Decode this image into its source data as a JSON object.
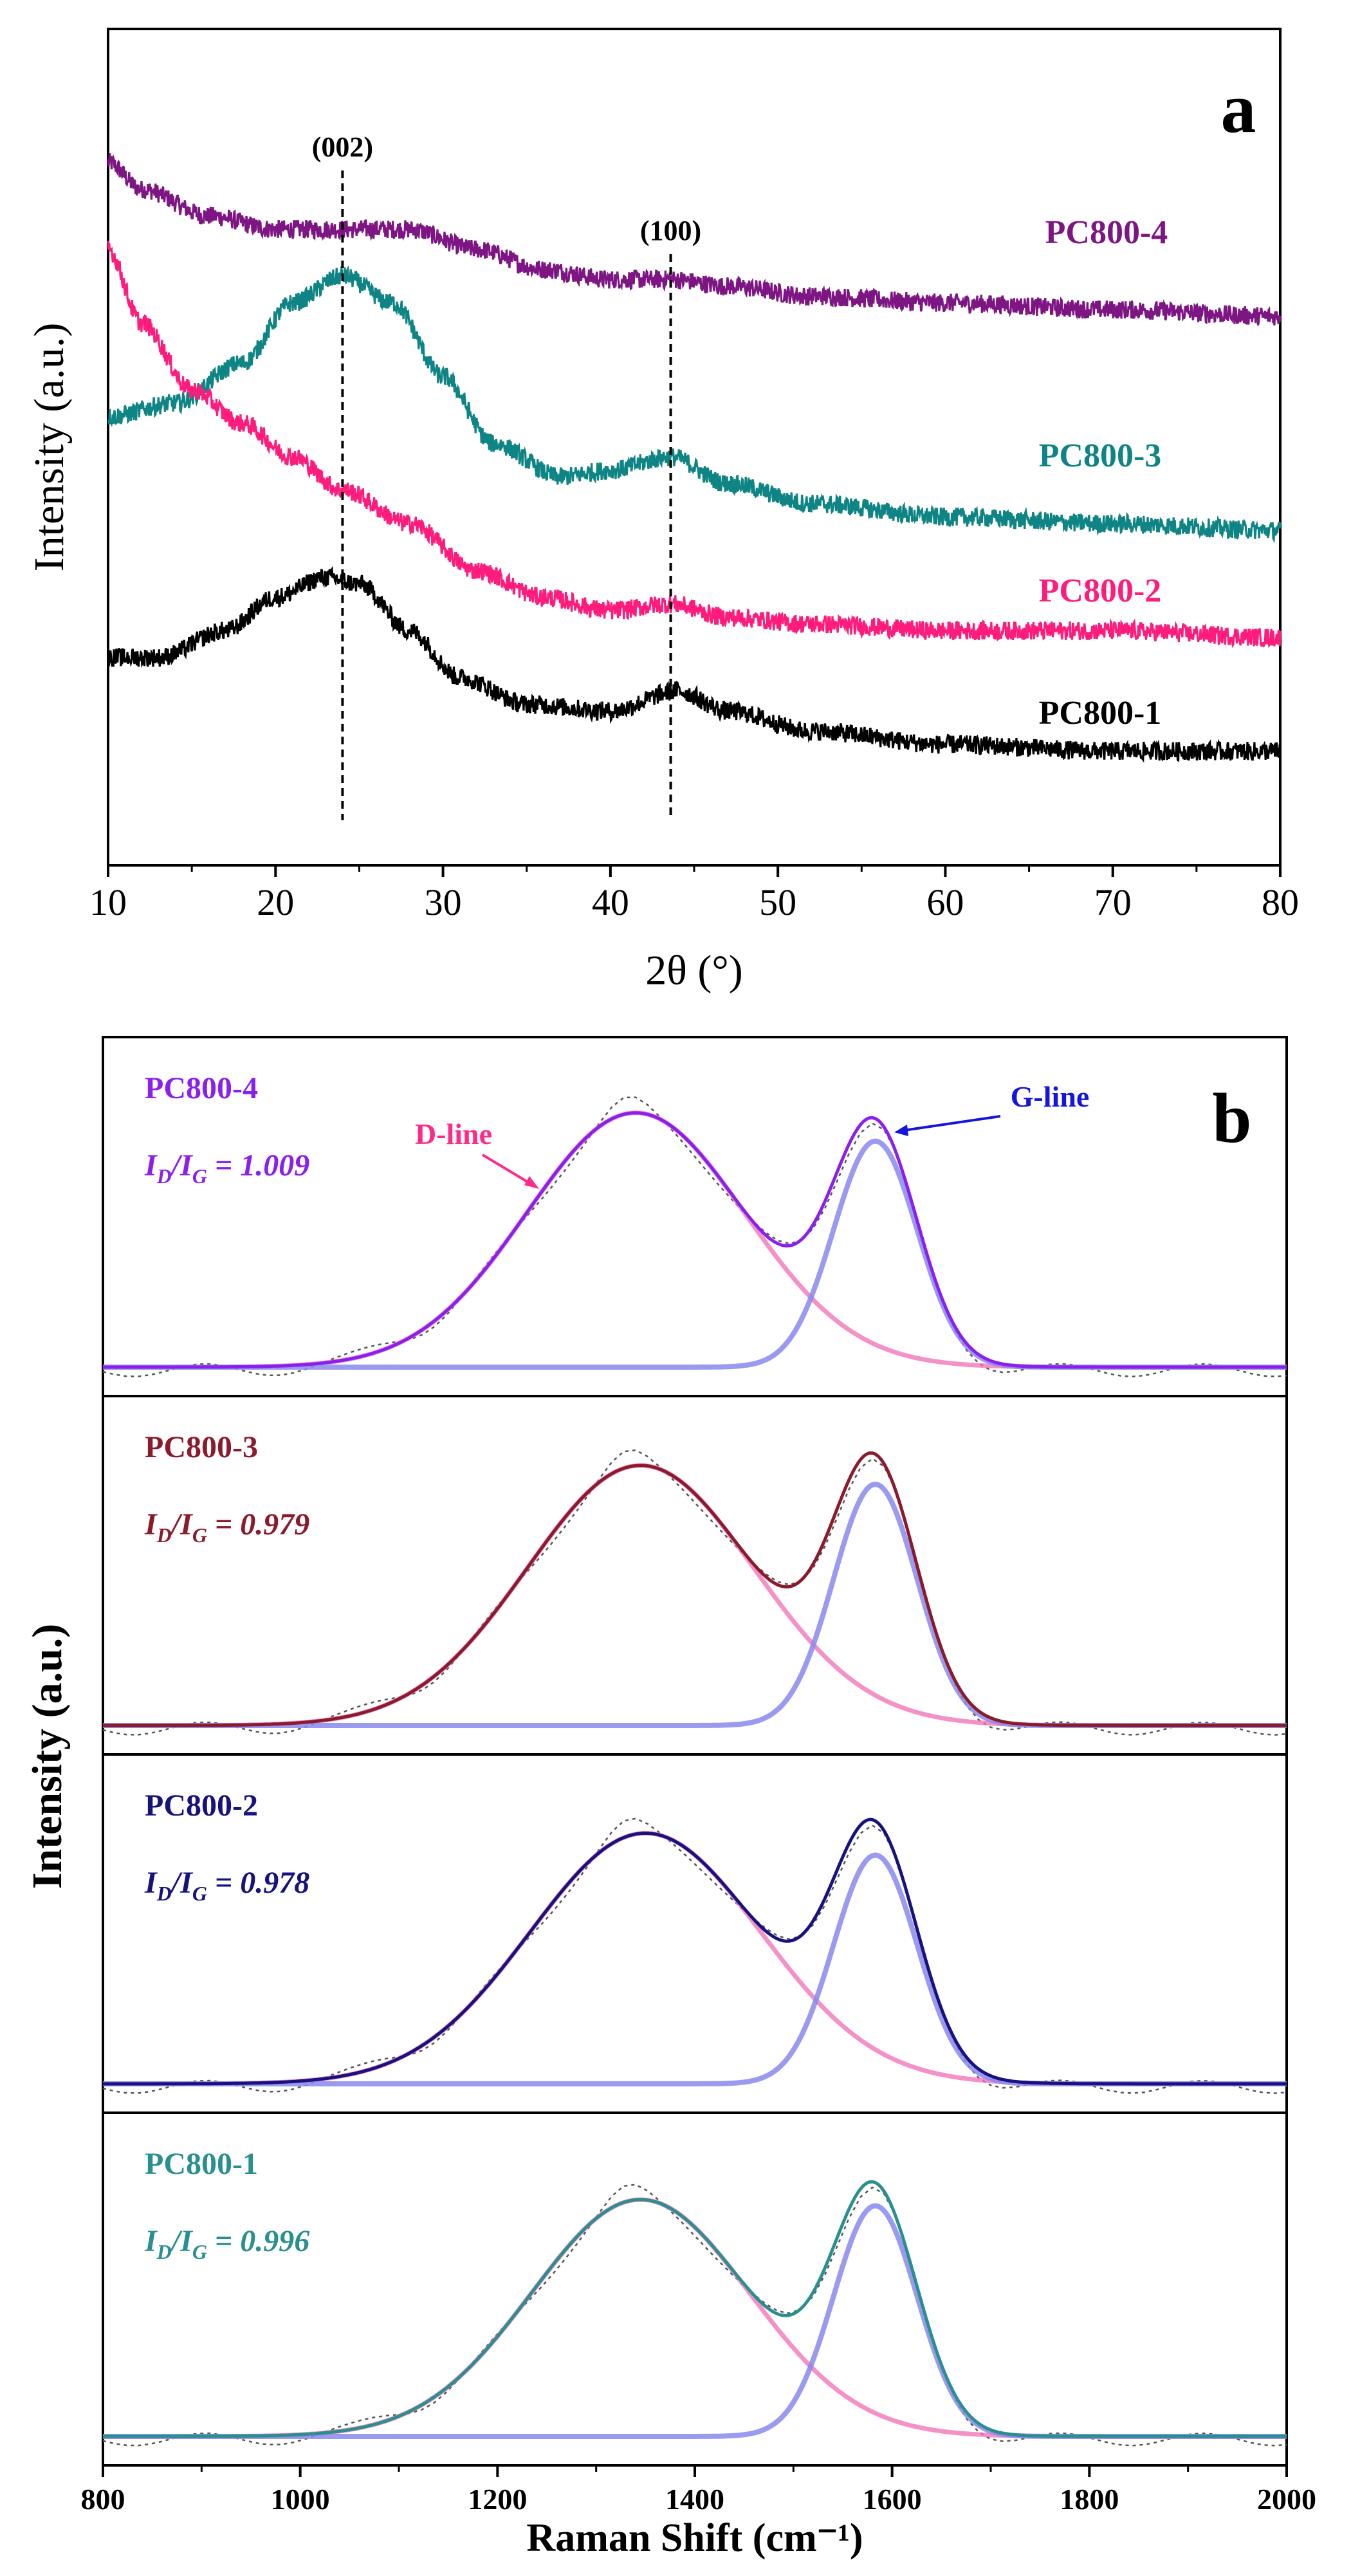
{
  "colors": {
    "pc1_xrd": "#000000",
    "pc2_xrd": "#ff1c7c",
    "pc3_xrd": "#0f8484",
    "pc4_xrd": "#7d1583",
    "pc4_raman": "#8a1ff0",
    "pc3_raman": "#8b1a2c",
    "pc2_raman": "#16127e",
    "pc1_raman": "#2a8f8f",
    "d_line": "#f06cb4",
    "g_line": "#8888ee",
    "raw": "#555555",
    "g_arrow": "#1515dd",
    "d_arrow": "#ff2a8a"
  },
  "chart_data": [
    {
      "type": "line",
      "panel_label": "a",
      "xlabel": "2θ (°)",
      "ylabel": "Intensity (a.u.)",
      "xlim": [
        10,
        80
      ],
      "xticks": [
        10,
        20,
        30,
        40,
        50,
        60,
        70,
        80
      ],
      "yticks_shown": false,
      "grid": false,
      "peak_markers": [
        {
          "label": "(002)",
          "x": 24
        },
        {
          "label": "(100)",
          "x": 43.6
        }
      ],
      "series": [
        {
          "name": "PC800-4",
          "color_key": "pc4_xrd",
          "x": [
            10,
            12,
            16,
            20,
            24,
            28,
            32,
            36,
            40,
            43.6,
            47,
            52,
            60,
            70,
            80
          ],
          "y": [
            0.94,
            0.9,
            0.86,
            0.84,
            0.84,
            0.84,
            0.81,
            0.78,
            0.765,
            0.765,
            0.755,
            0.74,
            0.73,
            0.72,
            0.71
          ]
        },
        {
          "name": "PC800-3",
          "color_key": "pc3_xrd",
          "x": [
            10,
            14,
            18,
            21,
            24,
            27,
            30,
            33,
            37,
            40,
            43.6,
            47,
            52,
            60,
            70,
            80
          ],
          "y": [
            0.56,
            0.58,
            0.64,
            0.73,
            0.77,
            0.73,
            0.62,
            0.52,
            0.47,
            0.48,
            0.5,
            0.46,
            0.43,
            0.41,
            0.4,
            0.39
          ]
        },
        {
          "name": "PC800-2",
          "color_key": "pc2_xrd",
          "x": [
            10,
            12,
            15,
            18,
            21,
            24,
            28,
            32,
            36,
            40,
            43.6,
            47,
            52,
            60,
            70,
            80
          ],
          "y": [
            0.81,
            0.7,
            0.6,
            0.55,
            0.5,
            0.45,
            0.4,
            0.33,
            0.29,
            0.27,
            0.28,
            0.26,
            0.25,
            0.24,
            0.24,
            0.23
          ]
        },
        {
          "name": "PC800-1",
          "color_key": "pc1_xrd",
          "x": [
            10,
            13,
            17,
            20,
            23,
            25,
            28,
            31,
            35,
            40,
            44,
            47,
            52,
            60,
            70,
            80
          ],
          "y": [
            0.2,
            0.2,
            0.24,
            0.29,
            0.32,
            0.31,
            0.24,
            0.17,
            0.13,
            0.12,
            0.15,
            0.12,
            0.09,
            0.07,
            0.06,
            0.06
          ]
        }
      ],
      "labels": [
        {
          "text": "PC800-4",
          "color_key": "pc4_xrd"
        },
        {
          "text": "PC800-3",
          "color_key": "pc3_xrd"
        },
        {
          "text": "PC800-2",
          "color_key": "pc2_xrd"
        },
        {
          "text": "PC800-1",
          "color_key": "pc1_xrd"
        }
      ]
    },
    {
      "type": "line",
      "panel_label": "b",
      "xlabel": "Raman Shift (cm⁻¹)",
      "ylabel": "Intensity (a.u.)",
      "xlim": [
        800,
        2000
      ],
      "xticks": [
        800,
        1000,
        1200,
        1400,
        1600,
        1800,
        2000
      ],
      "yticks_shown": false,
      "grid": false,
      "annotations": [
        {
          "text": "D-line",
          "color_key": "d_arrow"
        },
        {
          "text": "G-line",
          "color_key": "g_arrow"
        }
      ],
      "subpanels": [
        {
          "name": "PC800-4",
          "ratio_label": "= 1.009",
          "ratio": 1.009,
          "color_key": "pc4_raman",
          "d_peak": {
            "center": 1340,
            "fwhm": 260,
            "height": 0.81
          },
          "g_peak": {
            "center": 1583,
            "fwhm": 100,
            "height": 0.72
          }
        },
        {
          "name": "PC800-3",
          "ratio_label": "= 0.979",
          "ratio": 0.979,
          "color_key": "pc3_raman",
          "d_peak": {
            "center": 1345,
            "fwhm": 270,
            "height": 0.83
          },
          "g_peak": {
            "center": 1583,
            "fwhm": 100,
            "height": 0.77
          }
        },
        {
          "name": "PC800-2",
          "ratio_label": "= 0.978",
          "ratio": 0.978,
          "color_key": "pc2_raman",
          "d_peak": {
            "center": 1350,
            "fwhm": 275,
            "height": 0.8
          },
          "g_peak": {
            "center": 1583,
            "fwhm": 100,
            "height": 0.73
          }
        },
        {
          "name": "PC800-1",
          "ratio_label": "= 0.996",
          "ratio": 0.996,
          "color_key": "pc1_raman",
          "d_peak": {
            "center": 1345,
            "fwhm": 260,
            "height": 0.77
          },
          "g_peak": {
            "center": 1583,
            "fwhm": 100,
            "height": 0.75
          }
        }
      ]
    }
  ]
}
